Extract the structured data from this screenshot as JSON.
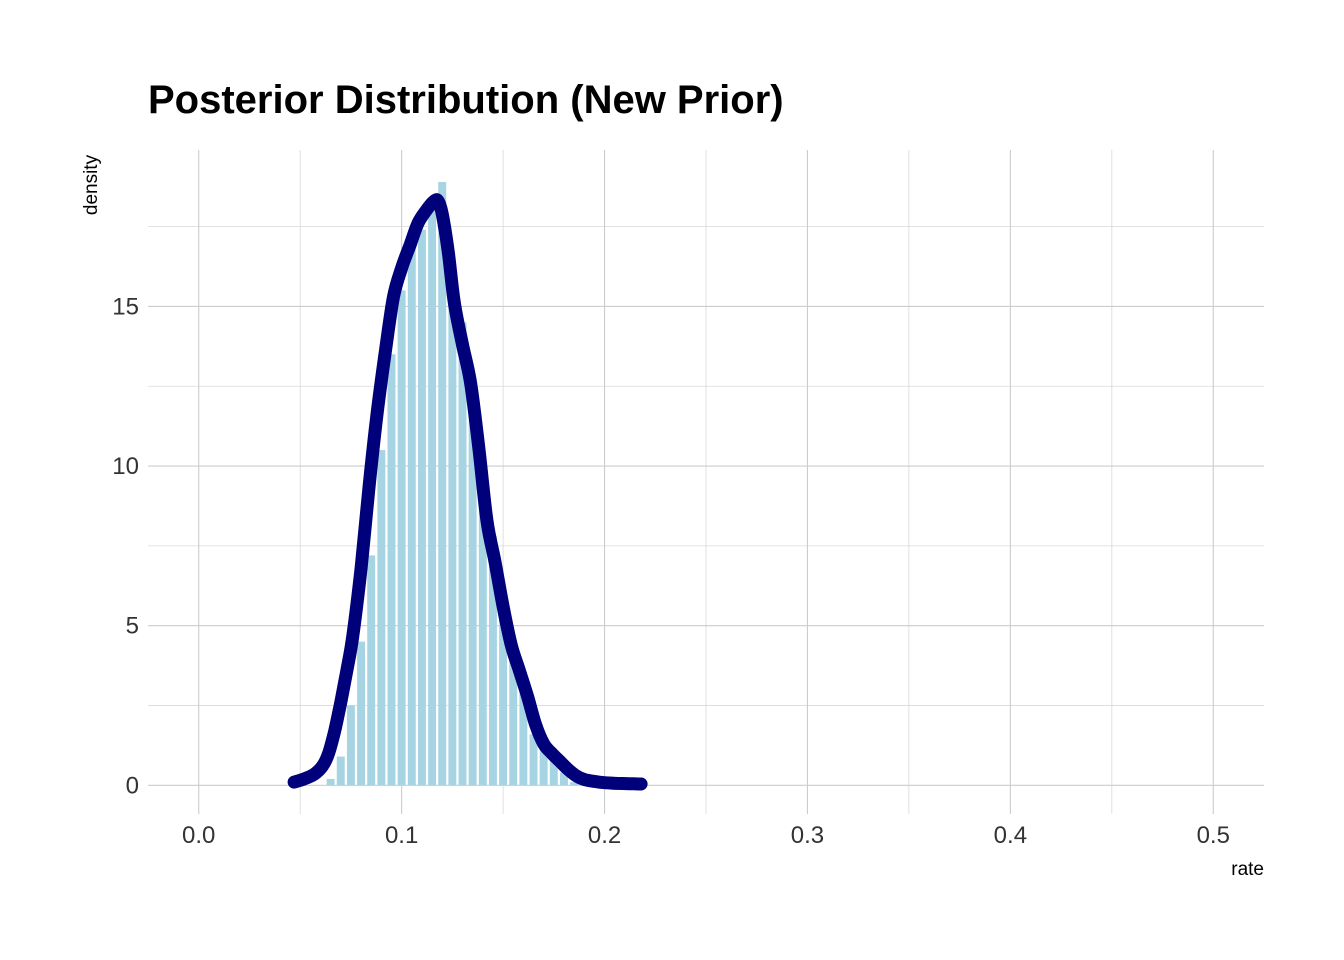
{
  "chart_data": {
    "type": "bar",
    "title": "Posterior Distribution (New Prior)",
    "xlabel": "rate",
    "ylabel": "density",
    "xlim": [
      -0.025,
      0.525
    ],
    "ylim": [
      -0.9,
      19.9
    ],
    "x_ticks": [
      0.0,
      0.1,
      0.2,
      0.3,
      0.4,
      0.5
    ],
    "x_tick_labels": [
      "0.0",
      "0.1",
      "0.2",
      "0.3",
      "0.4",
      "0.5"
    ],
    "y_ticks": [
      0,
      5,
      10,
      15
    ],
    "y_tick_labels": [
      "0",
      "5",
      "10",
      "15"
    ],
    "grid": true,
    "series": [
      {
        "kind": "histogram",
        "color": "#a7d4e3",
        "bin_width": 0.005,
        "x": [
          0.065,
          0.07,
          0.075,
          0.08,
          0.085,
          0.09,
          0.095,
          0.1,
          0.105,
          0.11,
          0.115,
          0.12,
          0.125,
          0.13,
          0.135,
          0.14,
          0.145,
          0.15,
          0.155,
          0.16,
          0.165,
          0.17,
          0.175,
          0.18,
          0.185
        ],
        "values": [
          0.2,
          0.9,
          2.5,
          4.5,
          7.2,
          10.5,
          13.5,
          15.5,
          16.8,
          17.4,
          18.2,
          18.9,
          15.6,
          14.5,
          12.3,
          9.6,
          7.8,
          5.7,
          4.0,
          2.9,
          1.6,
          1.2,
          0.8,
          0.4,
          0.1
        ]
      },
      {
        "kind": "density",
        "color": "#00007a",
        "x": [
          0.047,
          0.052,
          0.057,
          0.061,
          0.064,
          0.067,
          0.07,
          0.073,
          0.076,
          0.08,
          0.084,
          0.088,
          0.092,
          0.096,
          0.1,
          0.104,
          0.108,
          0.112,
          0.116,
          0.118,
          0.12,
          0.123,
          0.126,
          0.13,
          0.134,
          0.138,
          0.142,
          0.146,
          0.15,
          0.154,
          0.158,
          0.162,
          0.166,
          0.17,
          0.174,
          0.178,
          0.182,
          0.186,
          0.19,
          0.195,
          0.2,
          0.206,
          0.212,
          0.218
        ],
        "values": [
          0.1,
          0.2,
          0.35,
          0.6,
          1.0,
          1.7,
          2.6,
          3.6,
          4.7,
          6.8,
          9.4,
          11.7,
          13.6,
          15.3,
          16.2,
          16.9,
          17.6,
          18.0,
          18.3,
          18.3,
          17.9,
          16.7,
          15.1,
          13.8,
          12.6,
          10.6,
          8.3,
          7.0,
          5.6,
          4.4,
          3.6,
          2.8,
          1.9,
          1.3,
          1.0,
          0.75,
          0.5,
          0.3,
          0.18,
          0.12,
          0.08,
          0.06,
          0.05,
          0.04
        ]
      }
    ]
  }
}
